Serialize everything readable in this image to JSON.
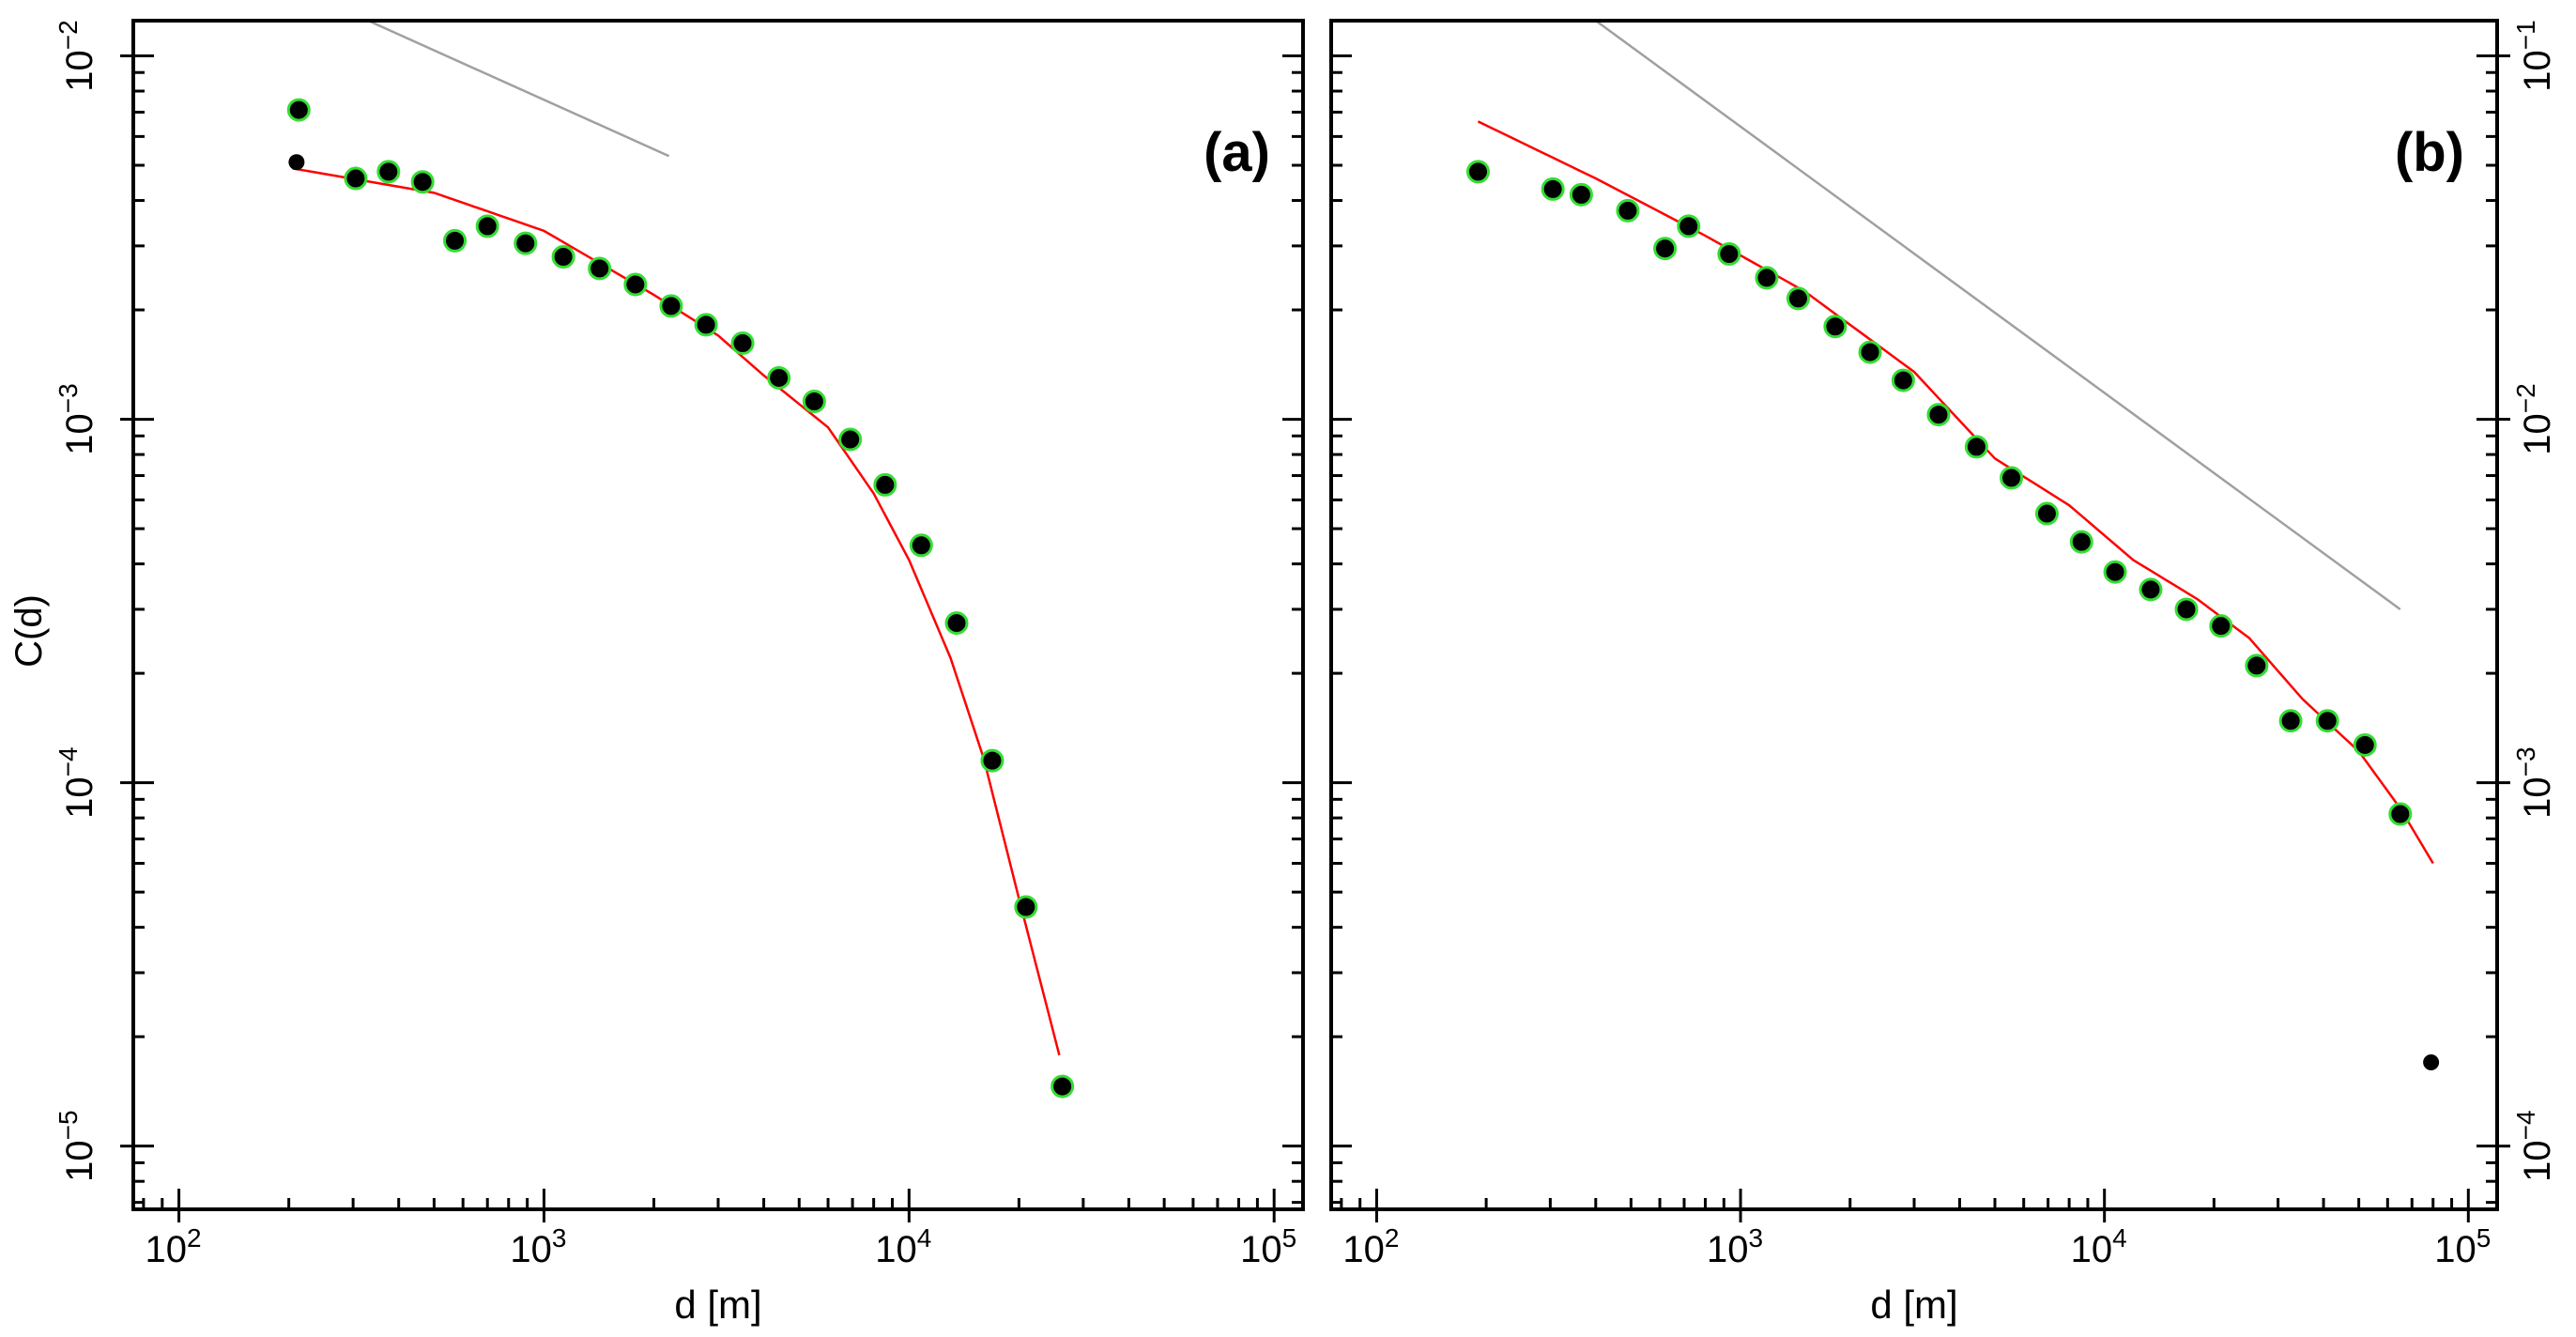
{
  "figure": {
    "y_label_left": "C(d)",
    "ref_line_color": "#a0a0a0",
    "fit_color": "#ff0000",
    "point_fill": "#000000",
    "point_ring": "#33dd33"
  },
  "chart_data": [
    {
      "type": "scatter",
      "panel_label": "(a)",
      "title": "",
      "xlabel": "d [m]",
      "ylabel": "C(d)",
      "x_scale": "log",
      "y_scale": "log",
      "xlim": [
        75,
        120000
      ],
      "ylim": [
        6.7e-06,
        0.0125
      ],
      "x_ticks": [
        {
          "value": 100,
          "base": "10",
          "exp": "2"
        },
        {
          "value": 1000,
          "base": "10",
          "exp": "3"
        },
        {
          "value": 10000,
          "base": "10",
          "exp": "4"
        },
        {
          "value": 100000,
          "base": "10",
          "exp": "5"
        }
      ],
      "y_ticks": [
        {
          "value": 1e-05,
          "base": "10",
          "exp": "−5"
        },
        {
          "value": 0.0001,
          "base": "10",
          "exp": "−4"
        },
        {
          "value": 0.001,
          "base": "10",
          "exp": "−3"
        },
        {
          "value": 0.01,
          "base": "10",
          "exp": "−2"
        }
      ],
      "y_ticks_side": "left",
      "series": [
        {
          "name": "data (ringed)",
          "x": [
            213,
            305,
            375,
            465,
            570,
            700,
            890,
            1130,
            1420,
            1780,
            2230,
            2780,
            3500,
            4400,
            5500,
            6900,
            8600,
            10800,
            13500,
            16900,
            20900,
            26300
          ],
          "y": [
            0.0071,
            0.0046,
            0.0048,
            0.0045,
            0.0031,
            0.0034,
            0.00305,
            0.0028,
            0.0026,
            0.00235,
            0.00205,
            0.00182,
            0.00162,
            0.0013,
            0.00112,
            0.00088,
            0.00066,
            0.00045,
            0.000275,
            0.000115,
            4.55e-05,
            1.46e-05
          ]
        },
        {
          "name": "data (unringed)",
          "x": [
            210
          ],
          "y": [
            0.0051
          ]
        },
        {
          "name": "fit",
          "x": [
            205,
            500,
            1000,
            2000,
            3000,
            4000,
            6000,
            8000,
            10000,
            13000,
            16000,
            20000,
            25800
          ],
          "y": [
            0.0049,
            0.0042,
            0.0033,
            0.0022,
            0.0017,
            0.00132,
            0.00095,
            0.000625,
            0.00041,
            0.00022,
            0.000117,
            4.8e-05,
            1.78e-05
          ]
        },
        {
          "name": "reference slope",
          "x": [
            330,
            2200
          ],
          "y": [
            0.0125,
            0.0053
          ]
        }
      ]
    },
    {
      "type": "scatter",
      "panel_label": "(b)",
      "title": "",
      "xlabel": "d [m]",
      "ylabel": "",
      "x_scale": "log",
      "y_scale": "log",
      "xlim": [
        75,
        120000
      ],
      "ylim": [
        6.7e-05,
        0.125
      ],
      "x_ticks": [
        {
          "value": 100,
          "base": "10",
          "exp": "2"
        },
        {
          "value": 1000,
          "base": "10",
          "exp": "3"
        },
        {
          "value": 10000,
          "base": "10",
          "exp": "4"
        },
        {
          "value": 100000,
          "base": "10",
          "exp": "5"
        }
      ],
      "y_ticks": [
        {
          "value": 0.0001,
          "base": "10",
          "exp": "−4"
        },
        {
          "value": 0.001,
          "base": "10",
          "exp": "−3"
        },
        {
          "value": 0.01,
          "base": "10",
          "exp": "−2"
        },
        {
          "value": 0.1,
          "base": "10",
          "exp": "−1"
        }
      ],
      "y_ticks_side": "right",
      "series": [
        {
          "name": "data (ringed)",
          "x": [
            190,
            305,
            365,
            490,
            620,
            720,
            930,
            1180,
            1440,
            1820,
            2270,
            2800,
            3500,
            4450,
            5550,
            6950,
            8650,
            10700,
            13400,
            16800,
            20900,
            26200,
            32500,
            41000,
            52000,
            65000
          ],
          "y": [
            0.048,
            0.043,
            0.0415,
            0.0375,
            0.0295,
            0.034,
            0.0285,
            0.0245,
            0.0215,
            0.018,
            0.0153,
            0.0128,
            0.0103,
            0.0084,
            0.0069,
            0.0055,
            0.0046,
            0.0038,
            0.0034,
            0.003,
            0.0027,
            0.0021,
            0.00148,
            0.00148,
            0.00127,
            0.00082
          ]
        },
        {
          "name": "data (unringed)",
          "x": [
            79000
          ],
          "y": [
            0.00017
          ]
        },
        {
          "name": "fit",
          "x": [
            190,
            400,
            800,
            1500,
            3000,
            5000,
            8000,
            12000,
            18000,
            25000,
            35000,
            50000,
            65000,
            80000
          ],
          "y": [
            0.066,
            0.046,
            0.032,
            0.0225,
            0.0135,
            0.0078,
            0.0058,
            0.0041,
            0.0032,
            0.0025,
            0.0017,
            0.00122,
            0.00085,
            0.0006
          ]
        },
        {
          "name": "reference slope",
          "x": [
            400,
            65000
          ],
          "y": [
            0.125,
            0.003
          ]
        }
      ]
    }
  ]
}
